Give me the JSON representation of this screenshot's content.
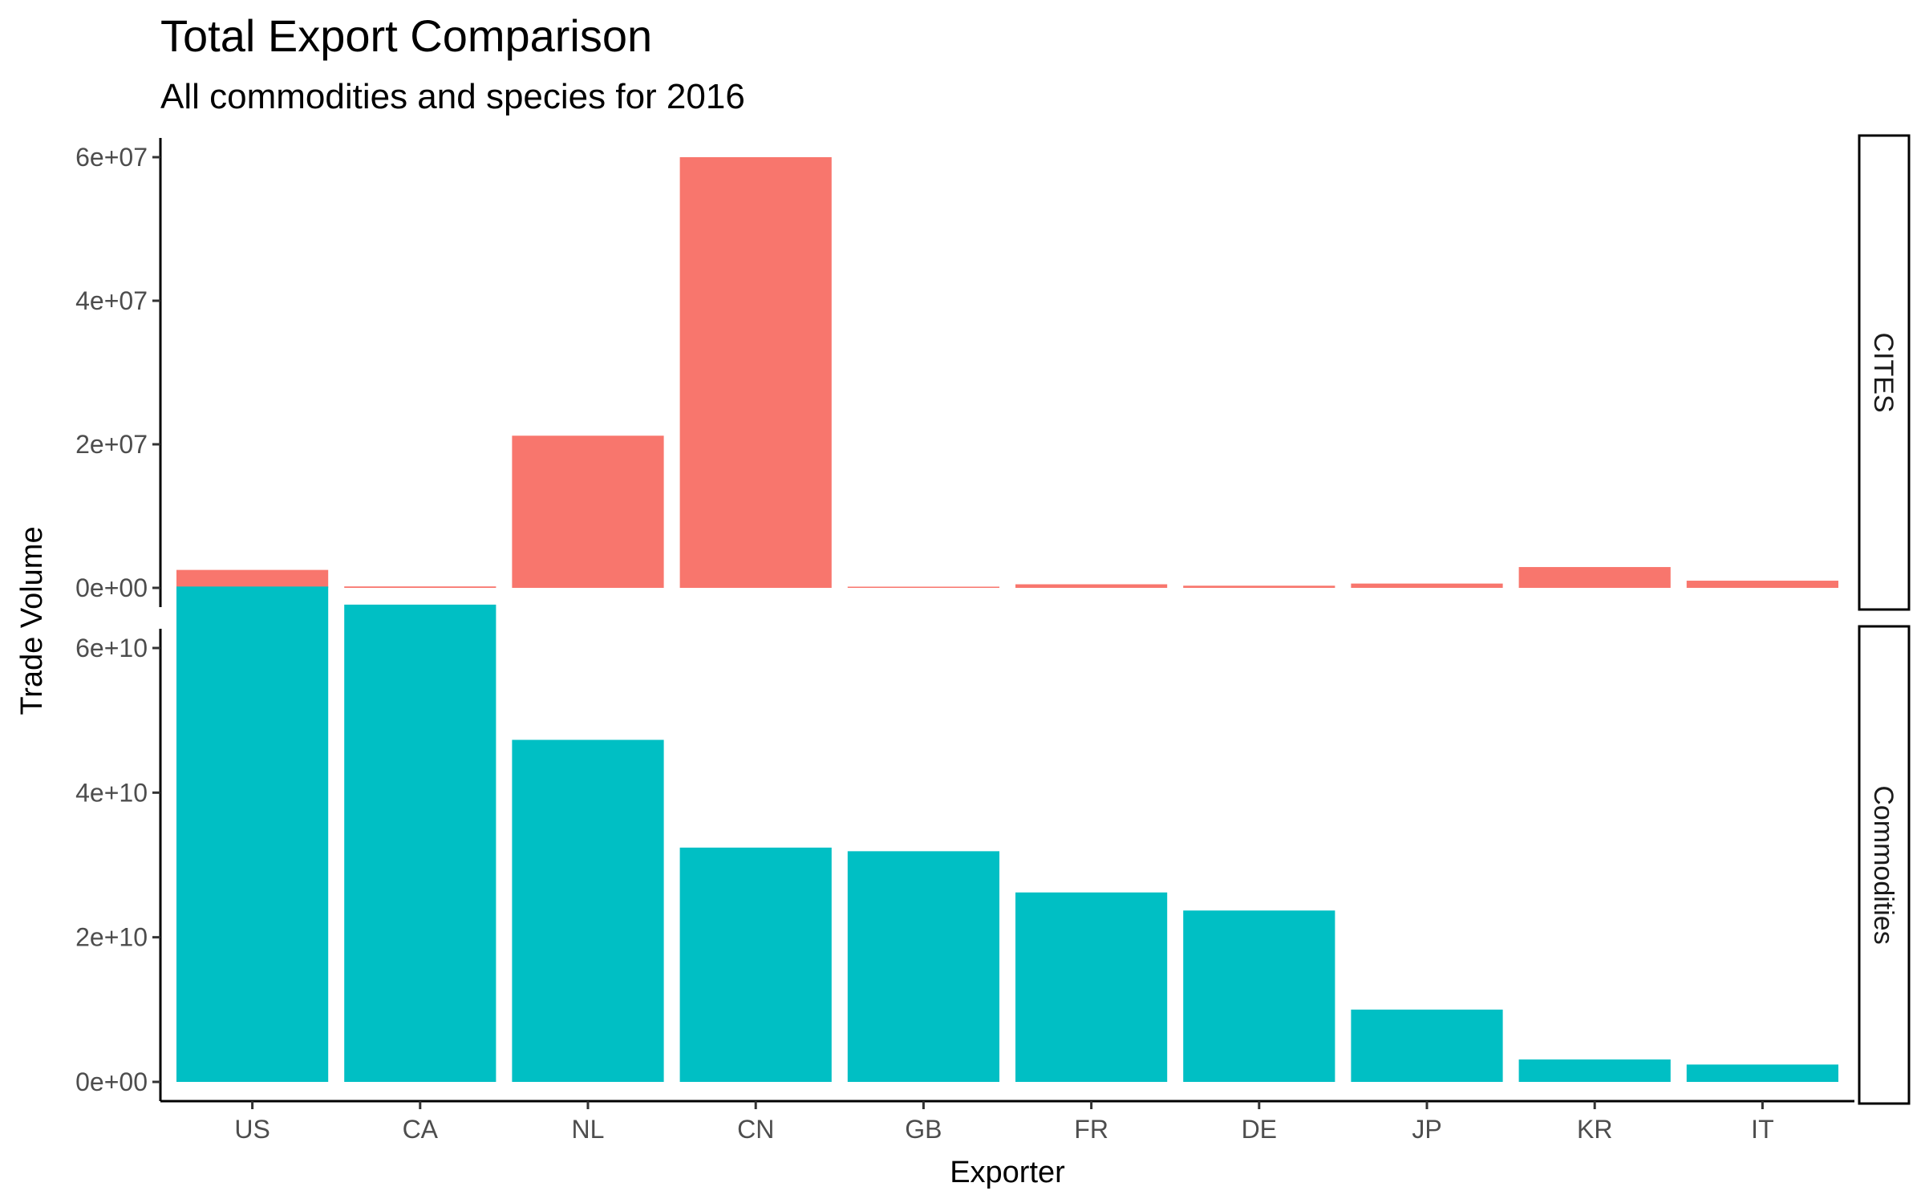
{
  "chart_data": {
    "type": "bar",
    "title": "Total Export Comparison",
    "subtitle": "All commodities and species for 2016",
    "xlabel": "Exporter",
    "ylabel": "Trade Volume",
    "categories": [
      "US",
      "CA",
      "NL",
      "CN",
      "GB",
      "FR",
      "DE",
      "JP",
      "KR",
      "IT"
    ],
    "legend": "none",
    "grid": false,
    "facets": [
      {
        "name": "CITES",
        "color": "#F8766D",
        "ylim": [
          0,
          62000000
        ],
        "yticks": [
          0,
          20000000,
          40000000,
          60000000
        ],
        "ytick_labels": [
          "0e+00",
          "2e+07",
          "4e+07",
          "6e+07"
        ],
        "values": [
          2500000,
          200000,
          21200000,
          60000000,
          150000,
          500000,
          300000,
          600000,
          2900000,
          1000000
        ]
      },
      {
        "name": "Commodities",
        "color": "#00BFC4",
        "ylim": [
          0,
          72000000000
        ],
        "yticks": [
          0,
          20000000000,
          40000000000,
          60000000000
        ],
        "ytick_labels": [
          "0e+00",
          "2e+10",
          "4e+10",
          "6e+10"
        ],
        "values": [
          68500000000,
          66000000000,
          47300000000,
          32400000000,
          31900000000,
          26200000000,
          23700000000,
          10000000000,
          3100000000,
          2400000000
        ]
      }
    ]
  }
}
